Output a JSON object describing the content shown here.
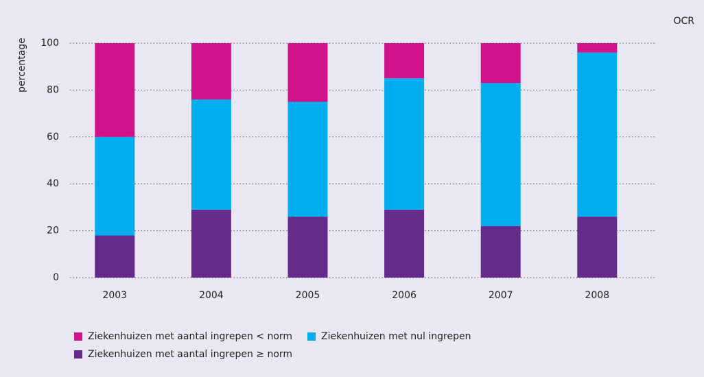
{
  "chart_data": {
    "type": "stacked_bar",
    "source": "OCR",
    "y_label": "percentage",
    "categories": [
      "2003",
      "2004",
      "2005",
      "2006",
      "2007",
      "2008"
    ],
    "series": [
      {
        "name": "Ziekenhuizen met aantal ingrepen < norm",
        "color": "#d0138b",
        "values": [
          40,
          24,
          25,
          15,
          17,
          4
        ]
      },
      {
        "name": "Ziekenhuizen met nul ingrepen",
        "color": "#00adee",
        "values": [
          42,
          47,
          49,
          56,
          61,
          70
        ]
      },
      {
        "name": "Ziekenhuizen met aantal ingrepen ≥ norm",
        "color": "#652b8b",
        "values": [
          18,
          29,
          26,
          29,
          22,
          26
        ]
      }
    ],
    "ylim": [
      0,
      100
    ],
    "yticks": [
      0,
      20,
      40,
      60,
      80,
      100
    ],
    "grid": true
  }
}
